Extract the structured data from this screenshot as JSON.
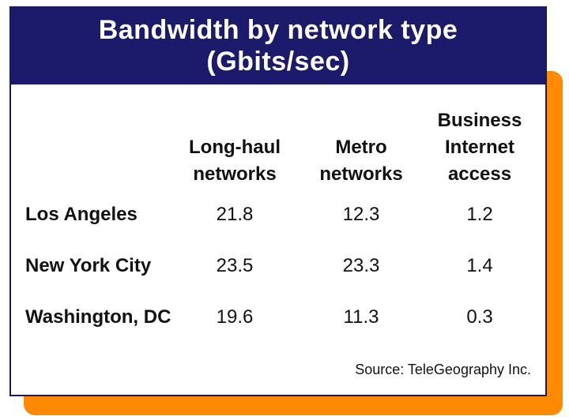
{
  "header": {
    "title": "Bandwidth by network type",
    "unit": "(Gbits/sec)"
  },
  "table": {
    "columns": [
      "Long-haul networks",
      "Metro networks",
      "Business Internet access"
    ],
    "rows": [
      [
        "Los Angeles",
        21.8,
        12.3,
        1.2
      ],
      [
        "New York City",
        23.5,
        23.3,
        1.4
      ],
      [
        "Washington, DC",
        19.6,
        11.3,
        0.3
      ]
    ]
  },
  "source": "Source: TeleGeography Inc."
}
